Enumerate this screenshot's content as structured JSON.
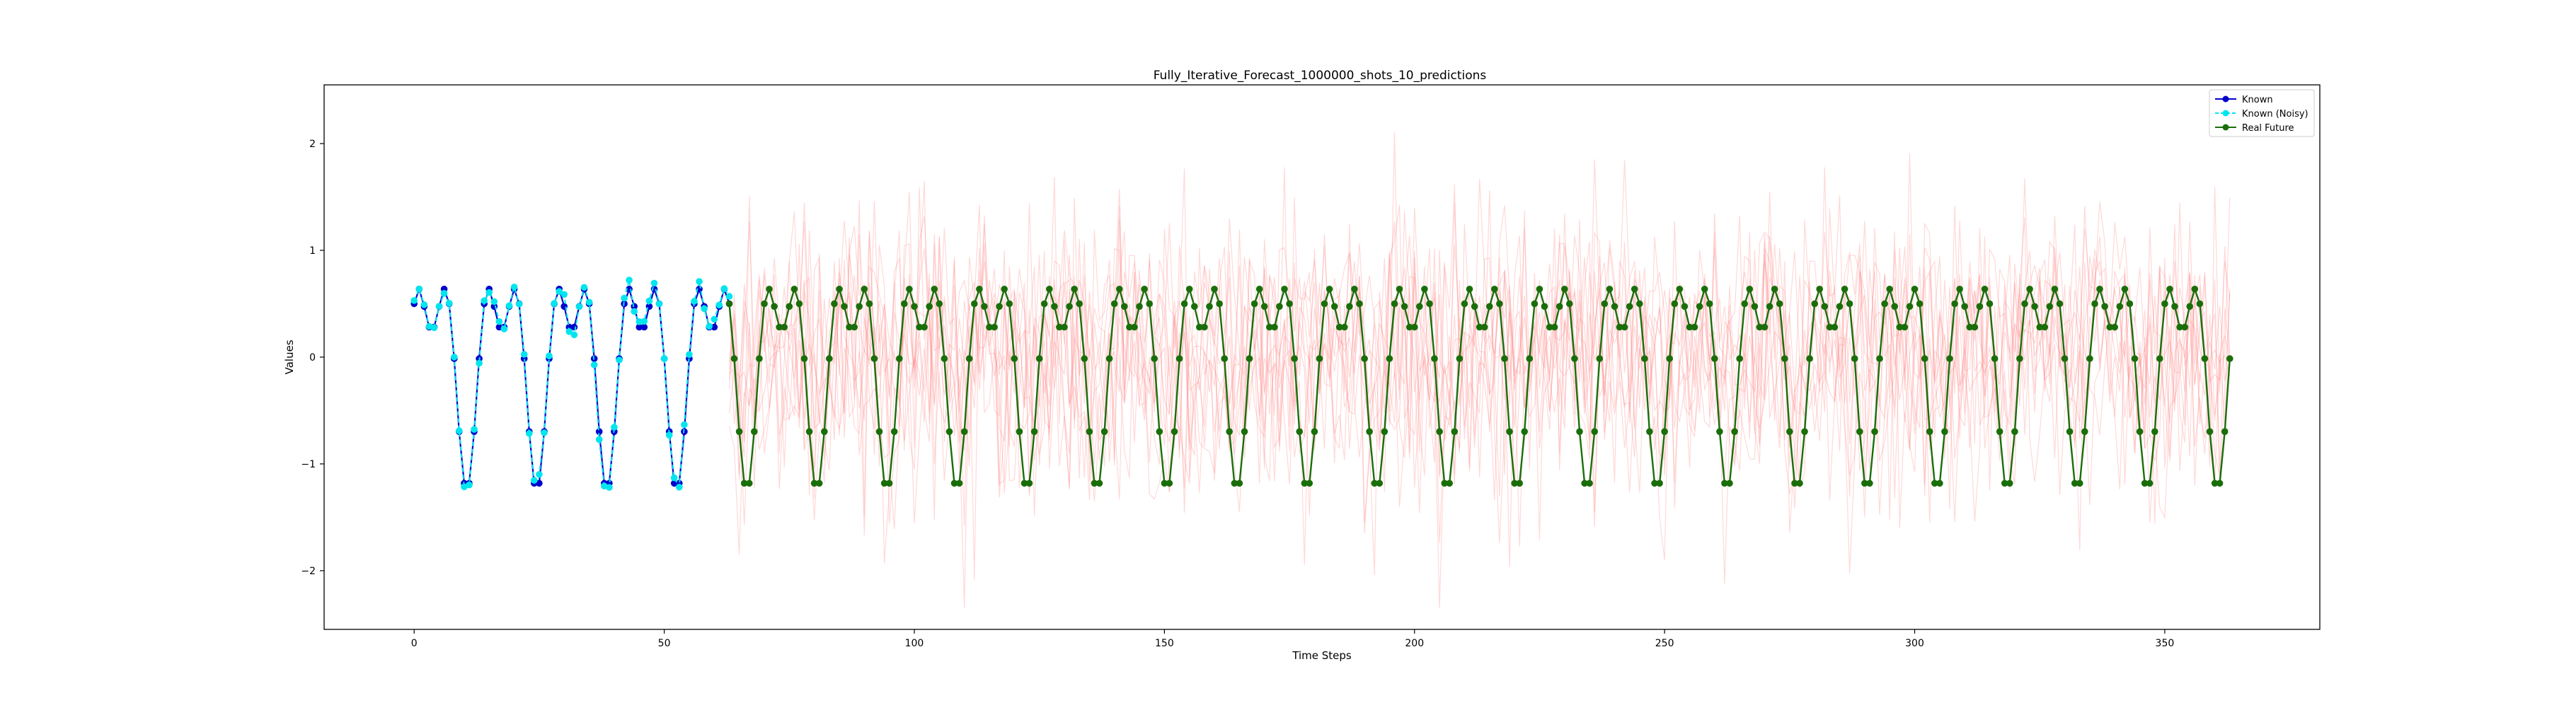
{
  "chart_data": {
    "type": "line",
    "title": "Fully_Iterative_Forecast_1000000_shots_10_predictions",
    "xlabel": "Time Steps",
    "ylabel": "Values",
    "xlim": [
      -18,
      381
    ],
    "ylim": [
      -2.55,
      2.55
    ],
    "x_ticks": [
      0,
      50,
      100,
      150,
      200,
      250,
      300,
      350
    ],
    "y_ticks": [
      -2,
      -1,
      0,
      1,
      2
    ],
    "grid": false,
    "legend_position": "top-right",
    "signal_model": "0.75*sin(2*pi*t/14) + 0.5*cos(2*pi*t/7)",
    "colors": {
      "known": "#0000cc",
      "known_noisy": "#00e5ee",
      "real_future": "#1a6e0a",
      "predictions": "#ff8080"
    },
    "series": [
      {
        "name": "Known",
        "style": "solid line with circle markers",
        "x_range": [
          0,
          63
        ],
        "step": 1
      },
      {
        "name": "Known (Noisy)",
        "style": "dashed line with circle markers",
        "x_range": [
          0,
          63
        ],
        "step": 1
      },
      {
        "name": "Real Future",
        "style": "solid line with circle markers",
        "x_range": [
          63,
          363
        ],
        "step": 1
      },
      {
        "name": "",
        "style": "10 faint red noisy prediction traces",
        "count": 10,
        "x_range": [
          63,
          363
        ],
        "y_spread": [
          -2.35,
          2.35
        ]
      }
    ]
  }
}
